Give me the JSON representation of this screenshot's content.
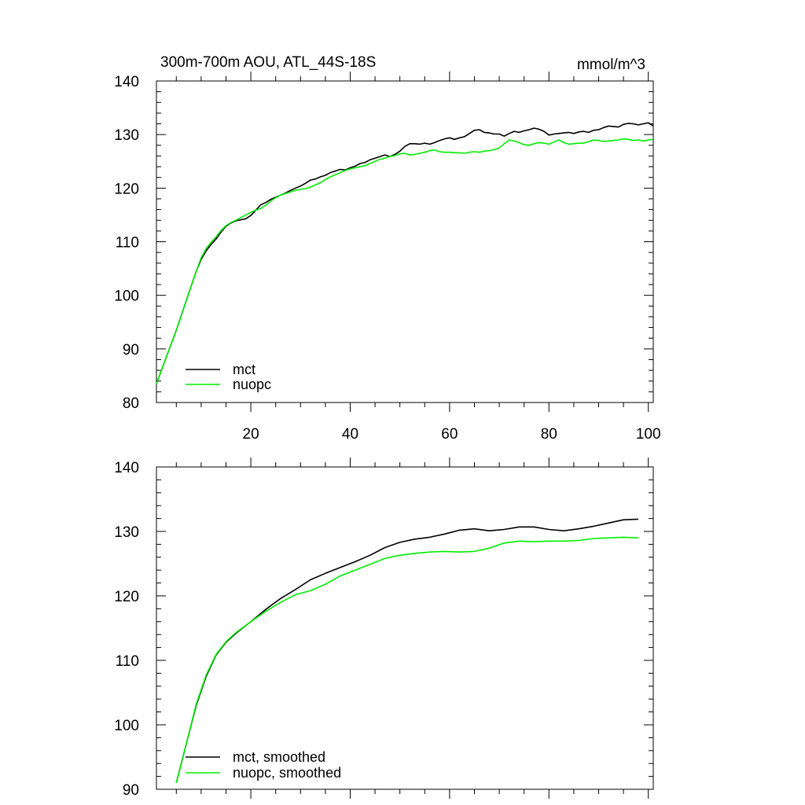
{
  "chart_data": [
    {
      "type": "line",
      "title_left": "300m-700m AOU, ATL_44S-18S",
      "title_right": "mmol/m^3",
      "xlim": [
        1,
        101
      ],
      "ylim": [
        80,
        140
      ],
      "xticks": [
        20,
        40,
        60,
        80,
        100
      ],
      "yticks": [
        80,
        90,
        100,
        110,
        120,
        130,
        140
      ],
      "show_x_tick_labels": true,
      "legend_position": "bottom-left",
      "series": [
        {
          "name": "mct",
          "color": "#000000",
          "x": [
            1,
            3,
            5,
            7,
            9,
            10,
            11,
            12,
            13,
            14,
            15,
            16,
            17,
            18,
            19,
            20,
            21,
            22,
            23,
            24,
            25,
            26,
            27,
            28,
            29,
            30,
            31,
            32,
            33,
            34,
            35,
            36,
            37,
            38,
            39,
            40,
            41,
            42,
            43,
            44,
            45,
            46,
            47,
            48,
            49,
            50,
            51,
            52,
            53,
            54,
            55,
            56,
            57,
            58,
            59,
            60,
            61,
            62,
            63,
            64,
            65,
            66,
            67,
            68,
            69,
            70,
            71,
            72,
            73,
            74,
            75,
            76,
            77,
            78,
            79,
            80,
            81,
            82,
            83,
            84,
            85,
            86,
            87,
            88,
            89,
            90,
            91,
            92,
            93,
            94,
            95,
            96,
            97,
            98,
            99,
            100,
            101
          ],
          "y": [
            83.5,
            88.5,
            93.5,
            99,
            104.5,
            106.7,
            108.3,
            109.5,
            110.5,
            111.8,
            112.9,
            113.5,
            113.9,
            114.1,
            114.3,
            114.9,
            115.9,
            116.9,
            117.3,
            117.9,
            118.3,
            118.7,
            119.1,
            119.6,
            120.0,
            120.4,
            120.9,
            121.5,
            121.7,
            122.1,
            122.4,
            122.9,
            123.2,
            123.5,
            123.4,
            123.8,
            124.1,
            124.6,
            124.8,
            125.3,
            125.6,
            125.9,
            126.2,
            125.9,
            126.3,
            126.9,
            127.8,
            128.3,
            128.3,
            128.2,
            128.4,
            128.2,
            128.5,
            128.9,
            129.2,
            129.4,
            129.1,
            129.4,
            129.6,
            130.2,
            130.8,
            130.9,
            130.4,
            130.3,
            130.1,
            130.1,
            129.7,
            130.2,
            130.6,
            130.4,
            130.7,
            130.9,
            131.2,
            131.0,
            130.6,
            129.9,
            130.1,
            130.2,
            130.3,
            130.4,
            130.2,
            130.5,
            130.6,
            130.4,
            130.8,
            130.9,
            131.3,
            131.6,
            131.5,
            131.4,
            131.9,
            132.1,
            132.0,
            131.8,
            132.0,
            132.2,
            131.6
          ]
        },
        {
          "name": "nuopc",
          "color": "#00ee00",
          "x": [
            1,
            3,
            5,
            7,
            9,
            10,
            11,
            12,
            13,
            14,
            15,
            16,
            17,
            18,
            19,
            20,
            21,
            22,
            23,
            24,
            25,
            26,
            27,
            28,
            29,
            30,
            31,
            32,
            33,
            34,
            35,
            36,
            37,
            38,
            39,
            40,
            41,
            42,
            43,
            44,
            45,
            46,
            47,
            48,
            49,
            50,
            51,
            52,
            53,
            54,
            55,
            56,
            57,
            58,
            59,
            60,
            61,
            62,
            63,
            64,
            65,
            66,
            67,
            68,
            69,
            70,
            71,
            72,
            73,
            74,
            75,
            76,
            77,
            78,
            79,
            80,
            81,
            82,
            83,
            84,
            85,
            86,
            87,
            88,
            89,
            90,
            91,
            92,
            93,
            94,
            95,
            96,
            97,
            98,
            99,
            100,
            101
          ],
          "y": [
            83.5,
            88.5,
            93.5,
            99,
            104.5,
            107.0,
            108.7,
            109.9,
            110.9,
            112.1,
            113.0,
            113.6,
            114.0,
            114.5,
            115.0,
            115.5,
            115.9,
            116.2,
            116.8,
            117.6,
            118.2,
            118.7,
            119.0,
            119.3,
            119.6,
            119.8,
            119.9,
            120.2,
            120.6,
            121.0,
            121.6,
            122.1,
            122.5,
            122.9,
            123.3,
            123.6,
            123.8,
            124.0,
            124.2,
            124.6,
            125.0,
            125.4,
            125.6,
            125.9,
            126.1,
            126.4,
            126.5,
            126.2,
            126.3,
            126.5,
            126.7,
            127.0,
            127.1,
            126.8,
            126.7,
            126.7,
            126.6,
            126.6,
            126.5,
            126.7,
            126.8,
            126.7,
            126.9,
            127.0,
            127.2,
            127.5,
            128.3,
            129.0,
            128.8,
            128.5,
            128.1,
            128.0,
            128.3,
            128.5,
            128.4,
            128.2,
            128.6,
            129.0,
            128.5,
            128.2,
            128.3,
            128.4,
            128.4,
            128.7,
            129.0,
            128.9,
            128.7,
            128.8,
            128.9,
            129.0,
            129.2,
            129.1,
            128.9,
            129.0,
            128.8,
            129.0,
            129.1
          ]
        }
      ]
    },
    {
      "type": "line",
      "xlim": [
        1,
        101
      ],
      "ylim": [
        90,
        140
      ],
      "xticks": [
        20,
        40,
        60,
        80,
        100
      ],
      "yticks": [
        90,
        100,
        110,
        120,
        130,
        140
      ],
      "show_x_tick_labels": false,
      "legend_position": "bottom-left",
      "series": [
        {
          "name": "mct, smoothed",
          "color": "#000000",
          "x": [
            5,
            7,
            9,
            11,
            13,
            15,
            17,
            20,
            23,
            26,
            29,
            32,
            35,
            38,
            41,
            44,
            47,
            50,
            53,
            56,
            59,
            62,
            65,
            68,
            71,
            74,
            77,
            80,
            83,
            86,
            89,
            92,
            95,
            98
          ],
          "y": [
            91,
            97,
            103,
            107.5,
            110.8,
            112.8,
            114.2,
            116,
            117.9,
            119.6,
            121,
            122.5,
            123.5,
            124.4,
            125.3,
            126.3,
            127.5,
            128.3,
            128.8,
            129.1,
            129.6,
            130.2,
            130.4,
            130.1,
            130.3,
            130.7,
            130.7,
            130.3,
            130.1,
            130.4,
            130.8,
            131.3,
            131.8,
            131.9
          ]
        },
        {
          "name": "nuopc, smoothed",
          "color": "#00ee00",
          "x": [
            5,
            7,
            9,
            11,
            13,
            15,
            17,
            20,
            23,
            26,
            29,
            32,
            35,
            38,
            41,
            44,
            47,
            50,
            53,
            56,
            59,
            62,
            65,
            68,
            71,
            74,
            77,
            80,
            83,
            86,
            89,
            92,
            95,
            98
          ],
          "y": [
            91,
            97,
            103.2,
            107.7,
            110.9,
            112.9,
            114.3,
            116,
            117.6,
            119,
            120.2,
            120.8,
            121.8,
            123.1,
            124,
            124.9,
            125.8,
            126.3,
            126.6,
            126.8,
            126.9,
            126.8,
            126.9,
            127.4,
            128.2,
            128.5,
            128.4,
            128.5,
            128.5,
            128.6,
            128.9,
            129,
            129.1,
            129
          ]
        }
      ]
    }
  ]
}
